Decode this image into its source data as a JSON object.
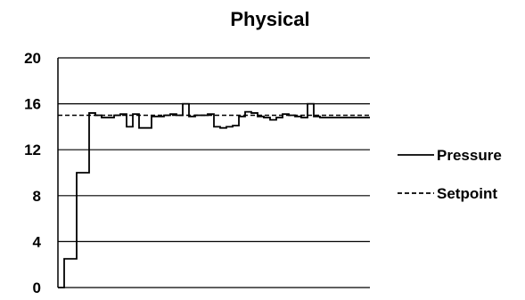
{
  "chart_data": {
    "type": "line",
    "title": "Physical",
    "xlabel": "",
    "ylabel": "",
    "ylim": [
      0,
      20
    ],
    "yticks": [
      "0",
      "4",
      "8",
      "12",
      "16",
      "20"
    ],
    "grid": true,
    "legend_position": "right",
    "x": [
      0,
      2,
      4,
      6,
      8,
      10,
      12,
      14,
      16,
      18,
      20,
      22,
      24,
      26,
      28,
      30,
      32,
      34,
      36,
      38,
      40,
      42,
      44,
      46,
      48,
      50,
      52,
      54,
      56,
      58,
      60,
      62,
      64,
      66,
      68,
      70,
      72,
      74,
      76,
      78,
      80,
      82,
      84,
      86,
      88,
      90,
      92,
      94,
      96,
      98,
      100
    ],
    "series": [
      {
        "name": "Pressure",
        "style": "solid",
        "values": [
          0,
          2.5,
          2.5,
          10,
          10,
          15.2,
          15.0,
          14.8,
          14.8,
          15.0,
          15.1,
          14.0,
          15.1,
          13.9,
          13.9,
          14.9,
          14.9,
          15.0,
          15.1,
          15.0,
          16.0,
          14.9,
          15.0,
          15.0,
          15.1,
          14.0,
          13.9,
          14.0,
          14.1,
          14.9,
          15.3,
          15.2,
          14.9,
          14.8,
          14.6,
          14.8,
          15.1,
          15.0,
          14.9,
          14.8,
          16.0,
          14.9,
          14.8,
          14.8,
          14.8,
          14.8,
          14.8,
          14.8,
          14.8,
          14.8,
          14.8
        ]
      },
      {
        "name": "Setpoint",
        "style": "dashed",
        "values": [
          15,
          15,
          15,
          15,
          15,
          15,
          15,
          15,
          15,
          15,
          15,
          15,
          15,
          15,
          15,
          15,
          15,
          15,
          15,
          15,
          15,
          15,
          15,
          15,
          15,
          15,
          15,
          15,
          15,
          15,
          15,
          15,
          15,
          15,
          15,
          15,
          15,
          15,
          15,
          15,
          15,
          15,
          15,
          15,
          15,
          15,
          15,
          15,
          15,
          15,
          15
        ]
      }
    ]
  }
}
